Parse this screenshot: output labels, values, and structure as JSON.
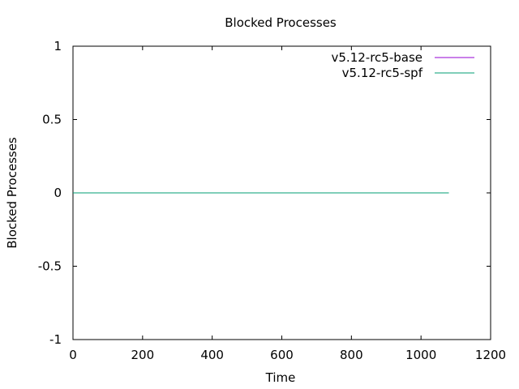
{
  "chart_data": {
    "type": "line",
    "title": "Blocked Processes",
    "xlabel": "Time",
    "ylabel": "Blocked Processes",
    "xlim": [
      0,
      1200
    ],
    "ylim": [
      -1,
      1
    ],
    "x_ticks": [
      0,
      200,
      400,
      600,
      800,
      1000,
      1200
    ],
    "y_ticks": [
      -1,
      -0.5,
      0,
      0.5,
      1
    ],
    "grid": false,
    "legend_position": "top-right",
    "series": [
      {
        "name": "v5.12-rc5-base",
        "color": "#9400d3",
        "x": [
          0,
          1080
        ],
        "y": [
          0,
          0
        ]
      },
      {
        "name": "v5.12-rc5-spf",
        "color": "#009e73",
        "x": [
          0,
          1080
        ],
        "y": [
          0,
          0
        ]
      }
    ]
  }
}
